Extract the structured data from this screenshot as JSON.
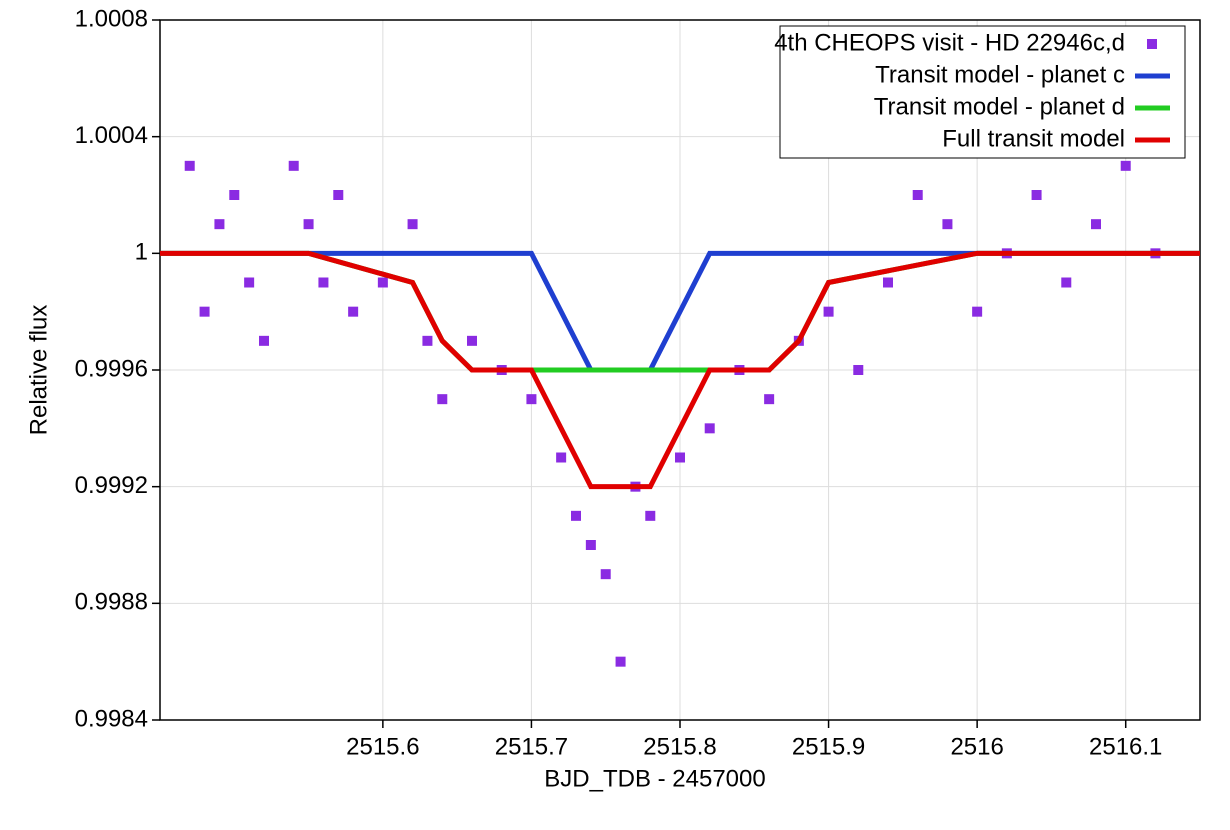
{
  "chart_data": {
    "type": "scatter",
    "title": null,
    "x_label": "BJD_TDB - 2457000",
    "y_label": "Relative flux",
    "xlim": [
      2515.45,
      2516.15
    ],
    "ylim": [
      0.9984,
      1.0008
    ],
    "xticks": [
      2515.6,
      2515.7,
      2515.8,
      2515.9,
      2516,
      2516.1
    ],
    "yticks": [
      0.9984,
      0.9988,
      0.9992,
      0.9996,
      1,
      1.0004,
      1.0008
    ],
    "grid": true,
    "legend": "upper right",
    "series": [
      {
        "name": "4th CHEOPS visit - HD 22946c,d",
        "color": "#8a2be2",
        "style": "markers",
        "x": [
          2515.47,
          2515.48,
          2515.49,
          2515.5,
          2515.51,
          2515.52,
          2515.54,
          2515.55,
          2515.56,
          2515.57,
          2515.58,
          2515.6,
          2515.62,
          2515.63,
          2515.64,
          2515.66,
          2515.68,
          2515.7,
          2515.72,
          2515.73,
          2515.74,
          2515.75,
          2515.76,
          2515.77,
          2515.78,
          2515.8,
          2515.82,
          2515.84,
          2515.86,
          2515.88,
          2515.9,
          2515.92,
          2515.94,
          2515.96,
          2515.98,
          2516.0,
          2516.02,
          2516.04,
          2516.06,
          2516.08,
          2516.1,
          2516.12
        ],
        "values": [
          1.0003,
          0.9998,
          1.0001,
          1.0002,
          0.9999,
          0.9997,
          1.0003,
          1.0001,
          0.9999,
          1.0002,
          0.9998,
          0.9999,
          1.0001,
          0.9997,
          0.9995,
          0.9997,
          0.9996,
          0.9995,
          0.9993,
          0.9991,
          0.999,
          0.9989,
          0.9986,
          0.9992,
          0.9991,
          0.9993,
          0.9994,
          0.9996,
          0.9995,
          0.9997,
          0.9998,
          0.9996,
          0.9999,
          1.0002,
          1.0001,
          0.9998,
          1.0,
          1.0002,
          0.9999,
          1.0001,
          1.0003,
          1.0
        ]
      },
      {
        "name": "Transit model - planet c",
        "color": "#1f3fd0",
        "style": "line",
        "x": [
          2515.45,
          2515.55,
          2515.62,
          2515.64,
          2515.66,
          2515.7,
          2515.72,
          2515.74,
          2515.78,
          2515.8,
          2515.82,
          2515.86,
          2515.88,
          2515.9,
          2516,
          2516.1,
          2516.15
        ],
        "values": [
          1,
          1,
          1,
          1,
          1,
          1,
          0.9998,
          0.9996,
          0.9996,
          0.9998,
          1,
          1,
          1,
          1,
          1,
          1,
          1
        ]
      },
      {
        "name": "Transit model - planet d",
        "color": "#22cc22",
        "style": "line",
        "x": [
          2515.45,
          2515.55,
          2515.62,
          2515.64,
          2515.66,
          2515.7,
          2515.72,
          2515.74,
          2515.78,
          2515.8,
          2515.82,
          2515.86,
          2515.88,
          2515.9,
          2516,
          2516.1,
          2516.15
        ],
        "values": [
          1,
          1,
          0.9999,
          0.9997,
          0.9996,
          0.9996,
          0.9996,
          0.9996,
          0.9996,
          0.9996,
          0.9996,
          0.9996,
          0.9997,
          0.9999,
          1,
          1,
          1
        ]
      },
      {
        "name": "Full transit model",
        "color": "#e00000",
        "style": "line",
        "x": [
          2515.45,
          2515.55,
          2515.62,
          2515.64,
          2515.66,
          2515.7,
          2515.72,
          2515.74,
          2515.78,
          2515.8,
          2515.82,
          2515.86,
          2515.88,
          2515.9,
          2516,
          2516.1,
          2516.15
        ],
        "values": [
          1,
          1,
          0.9999,
          0.9997,
          0.9996,
          0.9996,
          0.9994,
          0.9992,
          0.9992,
          0.9994,
          0.9996,
          0.9996,
          0.9997,
          0.9999,
          1,
          1,
          1
        ]
      }
    ]
  }
}
